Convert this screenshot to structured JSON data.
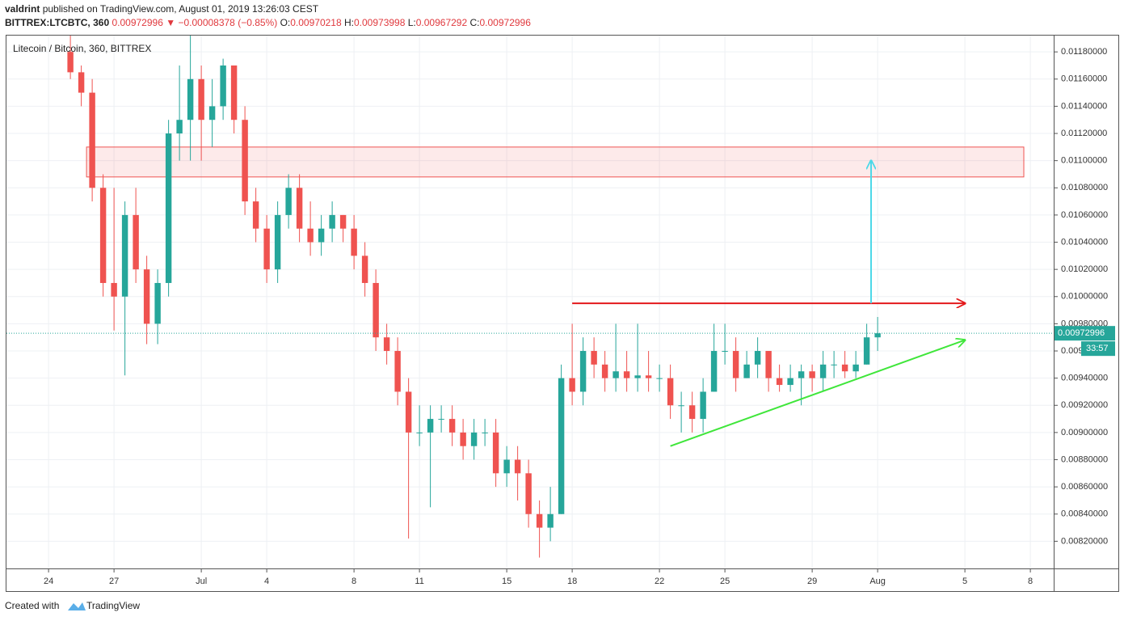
{
  "header": {
    "author": "valdrint",
    "published": "published on TradingView.com, August 01, 2019 13:26:03 CEST",
    "symbol": "BITTREX:LTCBTC, 360",
    "price": "0.00972996",
    "arrow": "▼",
    "change": "−0.00008378 (−0.85%)",
    "open_label": "O:",
    "open": "0.00970218",
    "high_label": "H:",
    "high": "0.00973998",
    "low_label": "L:",
    "low": "0.00967292",
    "close_label": "C:",
    "close": "0.00972996"
  },
  "footer": {
    "text": "Created with",
    "brand": "TradingView"
  },
  "chart_data": {
    "type": "candlestick",
    "title": "Litecoin / Bitcoin, 360, BITTREX",
    "up_color": "#26a69a",
    "down_color": "#ef5350",
    "grid": true,
    "x": [
      1,
      1.5,
      2,
      2.5,
      3,
      3.5,
      4,
      4.5,
      5,
      5.5,
      6,
      6.5,
      7,
      7.5,
      8,
      8.5,
      9,
      9.5,
      10,
      10.5,
      11,
      11.5,
      12,
      12.5,
      13,
      13.5,
      14,
      14.5,
      15,
      15.5,
      16,
      16.5,
      17,
      17.5,
      18,
      18.5,
      19,
      19.5,
      20,
      20.5,
      21,
      21.5,
      22,
      22.5,
      23,
      23.5,
      24,
      24.5,
      25,
      25.5,
      26,
      26.5,
      27,
      27.5,
      28,
      28.5,
      29,
      29.5,
      30,
      30.5,
      31,
      31.5,
      32,
      32.5,
      33,
      33.5,
      34,
      34.5,
      35,
      35.5,
      36,
      36.5,
      37,
      37.5,
      38
    ],
    "open": [
      0.0118,
      0.01165,
      0.0115,
      0.0108,
      0.0101,
      0.01,
      0.0106,
      0.0102,
      0.0098,
      0.0101,
      0.0112,
      0.0113,
      0.0116,
      0.0113,
      0.0114,
      0.0117,
      0.0113,
      0.0107,
      0.0105,
      0.0102,
      0.0106,
      0.0108,
      0.0105,
      0.0104,
      0.0105,
      0.0106,
      0.0105,
      0.0103,
      0.0101,
      0.0097,
      0.0096,
      0.0093,
      0.009,
      0.009,
      0.0091,
      0.0091,
      0.009,
      0.0089,
      0.009,
      0.009,
      0.0087,
      0.0088,
      0.0087,
      0.0084,
      0.0083,
      0.0084,
      0.0094,
      0.0093,
      0.0096,
      0.0095,
      0.0094,
      0.00945,
      0.0094,
      0.00942,
      0.0094,
      0.0094,
      0.0092,
      0.0092,
      0.0091,
      0.0093,
      0.0096,
      0.0096,
      0.0094,
      0.0095,
      0.0096,
      0.0094,
      0.00935,
      0.0094,
      0.00945,
      0.0094,
      0.0095,
      0.0095,
      0.00945,
      0.0095,
      0.0097
    ],
    "high": [
      0.01192,
      0.0117,
      0.0116,
      0.0109,
      0.0108,
      0.0107,
      0.0108,
      0.0103,
      0.0102,
      0.0113,
      0.0117,
      0.01192,
      0.0117,
      0.0116,
      0.01175,
      0.0117,
      0.0114,
      0.0108,
      0.0106,
      0.0107,
      0.0109,
      0.0109,
      0.0107,
      0.0106,
      0.0107,
      0.0106,
      0.0106,
      0.0104,
      0.0102,
      0.0098,
      0.0097,
      0.0094,
      0.0092,
      0.0092,
      0.0092,
      0.0092,
      0.0091,
      0.0091,
      0.0091,
      0.0091,
      0.0089,
      0.0089,
      0.0088,
      0.0085,
      0.0086,
      0.0095,
      0.0098,
      0.0097,
      0.0097,
      0.0096,
      0.0098,
      0.0096,
      0.0098,
      0.0096,
      0.0095,
      0.0095,
      0.0093,
      0.0093,
      0.0094,
      0.0098,
      0.0098,
      0.0097,
      0.0096,
      0.0097,
      0.0096,
      0.0095,
      0.0095,
      0.0095,
      0.0095,
      0.0096,
      0.0096,
      0.0096,
      0.0096,
      0.0098,
      0.00985
    ],
    "low": [
      0.0116,
      0.0114,
      0.0107,
      0.01,
      0.00975,
      0.00942,
      0.0101,
      0.00965,
      0.00965,
      0.01,
      0.011,
      0.011,
      0.011,
      0.0111,
      0.0113,
      0.0112,
      0.0106,
      0.0104,
      0.0101,
      0.0101,
      0.0105,
      0.0104,
      0.0103,
      0.0103,
      0.0104,
      0.0104,
      0.0102,
      0.01,
      0.0096,
      0.0095,
      0.0092,
      0.00822,
      0.0089,
      0.00845,
      0.009,
      0.0089,
      0.0088,
      0.0088,
      0.0089,
      0.0086,
      0.0086,
      0.0085,
      0.0083,
      0.00808,
      0.0082,
      0.0084,
      0.0092,
      0.0092,
      0.0094,
      0.0093,
      0.0093,
      0.0093,
      0.0093,
      0.0093,
      0.0093,
      0.0091,
      0.009,
      0.009,
      0.009,
      0.0093,
      0.0095,
      0.0093,
      0.0094,
      0.0094,
      0.0093,
      0.0093,
      0.0093,
      0.0092,
      0.0093,
      0.0093,
      0.0094,
      0.0094,
      0.0094,
      0.0095,
      0.0096
    ],
    "close": [
      0.01165,
      0.0115,
      0.0108,
      0.0101,
      0.01,
      0.0106,
      0.0102,
      0.0098,
      0.0101,
      0.0112,
      0.0113,
      0.0116,
      0.0113,
      0.0114,
      0.0117,
      0.0113,
      0.0107,
      0.0105,
      0.0102,
      0.0106,
      0.0108,
      0.0105,
      0.0104,
      0.0105,
      0.0106,
      0.0105,
      0.0103,
      0.0101,
      0.0097,
      0.0096,
      0.0093,
      0.009,
      0.009,
      0.0091,
      0.0091,
      0.009,
      0.0089,
      0.009,
      0.009,
      0.0087,
      0.0088,
      0.0087,
      0.0084,
      0.0083,
      0.0084,
      0.0094,
      0.0093,
      0.0096,
      0.0095,
      0.0094,
      0.00945,
      0.0094,
      0.00942,
      0.0094,
      0.0094,
      0.0092,
      0.0092,
      0.0091,
      0.0093,
      0.0096,
      0.0096,
      0.0094,
      0.0095,
      0.0096,
      0.0094,
      0.00935,
      0.0094,
      0.00945,
      0.0094,
      0.0095,
      0.0095,
      0.00945,
      0.0095,
      0.0097,
      0.00973
    ],
    "xlim": [
      -1.93,
      46.07
    ],
    "xticks": [
      {
        "value": 0,
        "label": "24"
      },
      {
        "value": 3,
        "label": "27"
      },
      {
        "value": 7,
        "label": "Jul"
      },
      {
        "value": 10,
        "label": "4"
      },
      {
        "value": 14,
        "label": "8"
      },
      {
        "value": 17,
        "label": "11"
      },
      {
        "value": 21,
        "label": "15"
      },
      {
        "value": 24,
        "label": "18"
      },
      {
        "value": 28,
        "label": "22"
      },
      {
        "value": 31,
        "label": "25"
      },
      {
        "value": 35,
        "label": "29"
      },
      {
        "value": 38,
        "label": "Aug"
      },
      {
        "value": 42,
        "label": "5"
      },
      {
        "value": 45,
        "label": "8"
      }
    ],
    "ylim": [
      0.008,
      0.01192
    ],
    "yticks": [
      {
        "value": 0.0082,
        "label": "0.00820000"
      },
      {
        "value": 0.0084,
        "label": "0.00840000"
      },
      {
        "value": 0.0086,
        "label": "0.00860000"
      },
      {
        "value": 0.0088,
        "label": "0.00880000"
      },
      {
        "value": 0.009,
        "label": "0.00900000"
      },
      {
        "value": 0.0092,
        "label": "0.00920000"
      },
      {
        "value": 0.0094,
        "label": "0.00940000"
      },
      {
        "value": 0.0096,
        "label": "0.00960000"
      },
      {
        "value": 0.0098,
        "label": "0.00980000"
      },
      {
        "value": 0.01,
        "label": "0.01000000"
      },
      {
        "value": 0.0102,
        "label": "0.01020000"
      },
      {
        "value": 0.0104,
        "label": "0.01040000"
      },
      {
        "value": 0.0106,
        "label": "0.01060000"
      },
      {
        "value": 0.0108,
        "label": "0.01080000"
      },
      {
        "value": 0.011,
        "label": "0.01100000"
      },
      {
        "value": 0.0112,
        "label": "0.01120000"
      },
      {
        "value": 0.0114,
        "label": "0.01140000"
      },
      {
        "value": 0.0116,
        "label": "0.01160000"
      },
      {
        "value": 0.0118,
        "label": "0.01180000"
      }
    ],
    "last_price": 0.00972996,
    "countdown": "33:57",
    "annotations": {
      "zone": {
        "x": [
          1.74,
          44.7
        ],
        "y": [
          0.01088,
          0.0111
        ],
        "color": "#ef5350"
      },
      "resistance": {
        "x": [
          24,
          42
        ],
        "y": [
          0.00995,
          0.00995
        ],
        "color": "#e3191b"
      },
      "support": {
        "x": [
          28.5,
          42
        ],
        "y": [
          0.0089,
          0.00968
        ],
        "color": "#3fe63a"
      },
      "target": {
        "x": [
          37.7,
          37.7
        ],
        "y": [
          0.00995,
          0.011
        ],
        "color": "#4dd8e8"
      }
    }
  }
}
